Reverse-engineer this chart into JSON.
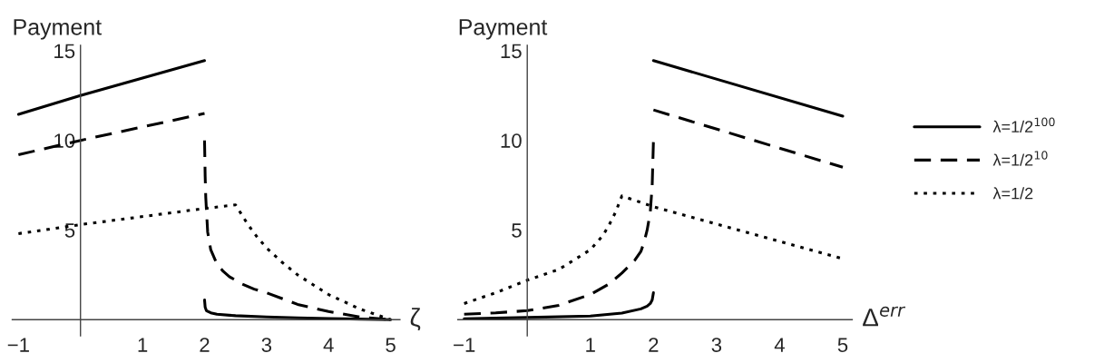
{
  "chart_data": [
    {
      "type": "line",
      "ylabel": "Payment",
      "xlabel": "ζ",
      "xlim": [
        -1.1,
        5.15
      ],
      "ylim": [
        -0.9,
        15.3
      ],
      "xticks": [
        {
          "value": -1,
          "label": "−1"
        },
        1,
        2,
        3,
        4,
        5
      ],
      "yticks": [
        5,
        10,
        15
      ],
      "grid": false,
      "legend": false,
      "series": [
        {
          "color": "#000000",
          "line_style": "solid",
          "x": [
            -1,
            0,
            2
          ],
          "values": [
            11.45,
            12.5,
            14.45
          ]
        },
        {
          "color": "#000000",
          "line_style": "solid",
          "x": [
            2,
            2.01,
            2.03,
            2.1,
            2.2,
            2.5,
            3,
            3.5,
            4,
            4.5,
            5
          ],
          "values": [
            1.1,
            0.7,
            0.5,
            0.38,
            0.3,
            0.22,
            0.15,
            0.1,
            0.06,
            0.03,
            0
          ]
        },
        {
          "color": "#000000",
          "line_style": "dashed",
          "x": [
            -1,
            0,
            2
          ],
          "values": [
            9.2,
            10.0,
            11.5
          ]
        },
        {
          "color": "#000000",
          "line_style": "dashed",
          "x": [
            2,
            2.01,
            2.02,
            2.05,
            2.1,
            2.2,
            2.3,
            2.4,
            2.6,
            2.8,
            3,
            3.5,
            4,
            4.5,
            5
          ],
          "values": [
            10.0,
            8.0,
            6.8,
            4.9,
            3.9,
            3.1,
            2.7,
            2.4,
            2.0,
            1.7,
            1.5,
            0.85,
            0.45,
            0.15,
            0
          ]
        },
        {
          "color": "#000000",
          "line_style": "dotted",
          "x": [
            -1,
            0,
            2,
            2.5,
            2.7,
            2.85,
            3,
            3.25,
            3.5,
            4,
            4.5,
            5
          ],
          "values": [
            4.8,
            5.3,
            6.2,
            6.4,
            5.3,
            4.6,
            4.0,
            3.2,
            2.5,
            1.4,
            0.6,
            0
          ]
        }
      ]
    },
    {
      "type": "line",
      "ylabel": "Payment",
      "xlabel": "Δ$^{err}$",
      "xlim": [
        -1.1,
        5.15
      ],
      "ylim": [
        -0.9,
        15.3
      ],
      "xticks": [
        {
          "value": -1,
          "label": "−1"
        },
        1,
        2,
        3,
        4,
        5
      ],
      "yticks": [
        5,
        10,
        15
      ],
      "grid": false,
      "legend": "right",
      "series": [
        {
          "color": "#000000",
          "line_style": "solid",
          "x": [
            -1,
            0,
            1,
            1.5,
            1.8,
            1.9,
            1.95,
            1.98,
            2
          ],
          "values": [
            0.05,
            0.12,
            0.2,
            0.37,
            0.6,
            0.75,
            0.9,
            1.1,
            1.5
          ]
        },
        {
          "name": "λ=1/2$^{100}$",
          "color": "#000000",
          "line_style": "solid",
          "x": [
            2,
            5
          ],
          "values": [
            14.45,
            11.35
          ]
        },
        {
          "color": "#000000",
          "line_style": "dashed",
          "x": [
            -1,
            -0.5,
            0,
            0.5,
            1,
            1.3,
            1.5,
            1.7,
            1.8,
            1.85,
            1.9,
            1.95,
            1.98,
            2
          ],
          "values": [
            0.3,
            0.38,
            0.5,
            0.8,
            1.4,
            2.0,
            2.6,
            3.3,
            3.8,
            4.3,
            5.0,
            6.0,
            7.5,
            10.0
          ]
        },
        {
          "name": "λ=1/2$^{10}$",
          "color": "#000000",
          "line_style": "dashed",
          "x": [
            2,
            5
          ],
          "values": [
            11.7,
            8.5
          ]
        },
        {
          "name": "λ=1/2",
          "color": "#000000",
          "line_style": "dotted",
          "x": [
            -1,
            -0.5,
            0,
            0.5,
            1,
            1.2,
            1.3,
            1.4,
            1.5,
            2,
            5
          ],
          "values": [
            0.9,
            1.5,
            2.2,
            2.8,
            3.9,
            4.7,
            5.3,
            6.0,
            6.9,
            6.3,
            3.4
          ]
        }
      ]
    }
  ]
}
